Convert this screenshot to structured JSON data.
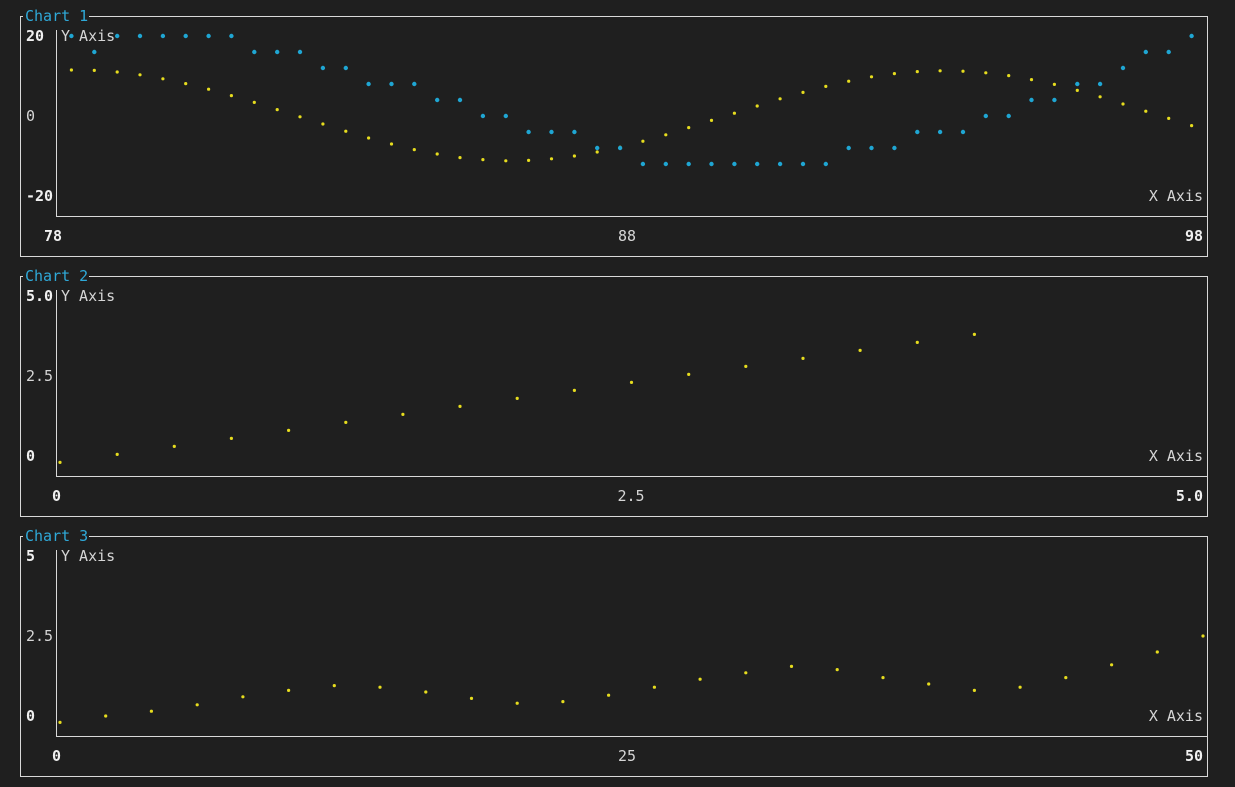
{
  "colors": {
    "background": "#1f1f1f",
    "frame": "#d9d9d9",
    "title": "#2fa9d8",
    "text": "#d6d6d6",
    "series_yellow": "#e6dc1e",
    "series_cyan": "#1fa6d3",
    "series_white": "#e6e6e6"
  },
  "chart_data": [
    {
      "type": "scatter",
      "title": "Chart 1",
      "xlabel": "X Axis",
      "ylabel": "Y Axis",
      "xlim": [
        78,
        98
      ],
      "ylim": [
        -20,
        20
      ],
      "x_ticks": [
        "78",
        "88",
        "98"
      ],
      "y_ticks": [
        "20",
        "0",
        "-20"
      ],
      "grid": false,
      "series": [
        {
          "style": "sine",
          "color": "#e6dc1e",
          "x": [
            78.2,
            78.6,
            79.0,
            79.4,
            79.8,
            80.2,
            80.6,
            81.0,
            81.4,
            81.8,
            82.2,
            82.6,
            83.0,
            83.4,
            83.8,
            84.2,
            84.6,
            85.0,
            85.4,
            85.8,
            86.2,
            86.6,
            87.0,
            87.4,
            87.8,
            88.2,
            88.6,
            89.0,
            89.4,
            89.8,
            90.2,
            90.6,
            91.0,
            91.4,
            91.8,
            92.2,
            92.6,
            93.0,
            93.4,
            93.8,
            94.2,
            94.6,
            95.0,
            95.4,
            95.8,
            96.2,
            96.6,
            97.0,
            97.4,
            97.8
          ],
          "y": [
            11.5,
            11.4,
            11.0,
            10.3,
            9.3,
            8.1,
            6.7,
            5.1,
            3.4,
            1.6,
            -0.2,
            -2.0,
            -3.8,
            -5.5,
            -7.0,
            -8.4,
            -9.5,
            -10.4,
            -10.9,
            -11.2,
            -11.1,
            -10.7,
            -10.0,
            -9.0,
            -7.8,
            -6.3,
            -4.7,
            -2.9,
            -1.1,
            0.7,
            2.5,
            4.3,
            5.9,
            7.4,
            8.7,
            9.8,
            10.6,
            11.1,
            11.3,
            11.2,
            10.8,
            10.1,
            9.1,
            7.9,
            6.4,
            4.8,
            3.0,
            1.2,
            -0.6,
            -2.4
          ]
        },
        {
          "style": "square-wave",
          "color": "#1fa6d3",
          "x": [
            78.2,
            78.6,
            79.0,
            79.4,
            79.8,
            80.2,
            80.6,
            81.0,
            81.4,
            81.8,
            82.2,
            82.6,
            83.0,
            83.4,
            83.8,
            84.2,
            84.6,
            85.0,
            85.4,
            85.8,
            86.2,
            86.6,
            87.0,
            87.4,
            87.8,
            88.2,
            88.6,
            89.0,
            89.4,
            89.8,
            90.2,
            90.6,
            91.0,
            91.4,
            91.8,
            92.2,
            92.6,
            93.0,
            93.4,
            93.8,
            94.2,
            94.6,
            95.0,
            95.4,
            95.8,
            96.2,
            96.6,
            97.0,
            97.4,
            97.8
          ],
          "y": [
            20,
            16,
            20,
            20,
            20,
            20,
            20,
            20,
            16,
            16,
            16,
            12,
            12,
            8,
            8,
            8,
            4,
            4,
            0,
            0,
            -4,
            -4,
            -4,
            -8,
            -8,
            -12,
            -12,
            -12,
            -12,
            -12,
            -12,
            -12,
            -12,
            -12,
            -8,
            -8,
            -8,
            -4,
            -4,
            -4,
            0,
            0,
            4,
            4,
            8,
            8,
            12,
            16,
            16,
            20
          ]
        }
      ]
    },
    {
      "type": "scatter",
      "title": "Chart 2",
      "xlabel": "X Axis",
      "ylabel": "Y Axis",
      "xlim": [
        0,
        5
      ],
      "ylim": [
        0,
        5
      ],
      "x_ticks": [
        "0",
        "2.5",
        "5.0"
      ],
      "y_ticks": [
        "5.0",
        "2.5",
        "0"
      ],
      "grid": false,
      "series": [
        {
          "style": "linear",
          "color": "#e6dc1e",
          "x": [
            0.0,
            0.25,
            0.5,
            0.75,
            1.0,
            1.25,
            1.5,
            1.75,
            2.0,
            2.25,
            2.5,
            2.75,
            3.0,
            3.25,
            3.5,
            3.75,
            4.0
          ],
          "y": [
            -0.2,
            0.05,
            0.3,
            0.55,
            0.8,
            1.05,
            1.3,
            1.55,
            1.8,
            2.05,
            2.3,
            2.55,
            2.8,
            3.05,
            3.3,
            3.55,
            3.8
          ]
        }
      ]
    },
    {
      "type": "scatter",
      "title": "Chart 3",
      "xlabel": "X Axis",
      "ylabel": "Y Axis",
      "xlim": [
        0,
        50
      ],
      "ylim": [
        0,
        5
      ],
      "x_ticks": [
        "0",
        "25",
        "50"
      ],
      "y_ticks": [
        "5",
        "2.5",
        "0"
      ],
      "grid": false,
      "series": [
        {
          "style": "wave",
          "color": "#e6dc1e",
          "x": [
            0,
            2,
            4,
            6,
            8,
            10,
            12,
            14,
            16,
            18,
            20,
            22,
            24,
            26,
            28,
            30,
            32,
            34,
            36,
            38,
            40,
            42,
            44,
            46,
            48,
            50
          ],
          "y": [
            -0.2,
            0.0,
            0.15,
            0.35,
            0.6,
            0.8,
            0.95,
            0.9,
            0.75,
            0.55,
            0.4,
            0.45,
            0.65,
            0.9,
            1.15,
            1.35,
            1.55,
            1.45,
            1.2,
            1.0,
            0.8,
            0.9,
            1.2,
            1.6,
            2.0,
            2.5
          ]
        }
      ]
    }
  ]
}
